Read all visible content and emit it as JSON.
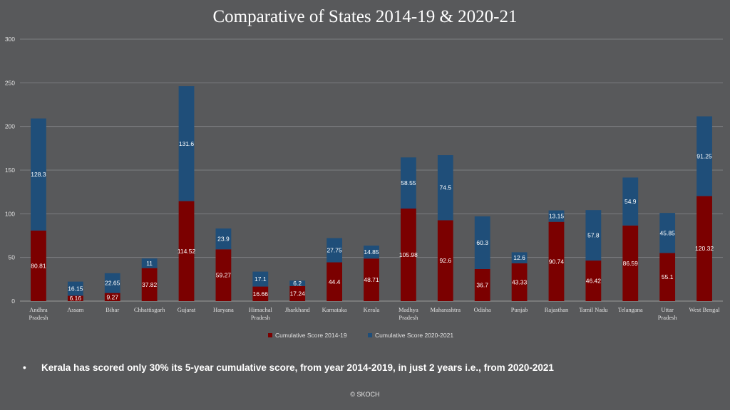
{
  "chart_data": {
    "type": "bar",
    "stacked": true,
    "title": "Comparative of States 2014-19 & 2020-21",
    "categories": [
      "Andhra Pradesh",
      "Assam",
      "Bihar",
      "Chhattisgarh",
      "Gujarat",
      "Haryana",
      "Himachal Pradesh",
      "Jharkhand",
      "Karnataka",
      "Kerala",
      "Madhya Pradesh",
      "Maharashtra",
      "Odisha",
      "Punjab",
      "Rajasthan",
      "Tamil Nadu",
      "Telangana",
      "Uttar Pradesh",
      "West Bengal"
    ],
    "category_lines": [
      [
        "Andhra",
        "Pradesh"
      ],
      [
        "Assam"
      ],
      [
        "Bihar"
      ],
      [
        "Chhattisgarh"
      ],
      [
        "Gujarat"
      ],
      [
        "Haryana"
      ],
      [
        "Himachal",
        "Pradesh"
      ],
      [
        "Jharkhand"
      ],
      [
        "Karnataka"
      ],
      [
        "Kerala"
      ],
      [
        "Madhya",
        "Pradesh"
      ],
      [
        "Maharashtra"
      ],
      [
        "Odisha"
      ],
      [
        "Punjab"
      ],
      [
        "Rajasthan"
      ],
      [
        "Tamil Nadu"
      ],
      [
        "Telangana"
      ],
      [
        "Uttar",
        "Pradesh"
      ],
      [
        "West Bengal"
      ]
    ],
    "series": [
      {
        "name": "Cumulative Score 2014-19",
        "color": "#7b0000",
        "values": [
          80.81,
          6.16,
          9.27,
          37.82,
          114.52,
          59.27,
          16.66,
          17.24,
          44.4,
          48.71,
          105.98,
          92.6,
          36.7,
          43.33,
          90.74,
          46.42,
          86.59,
          55.1,
          120.32
        ]
      },
      {
        "name": "Cumulative Score 2020-2021",
        "color": "#1f4e79",
        "values": [
          128.3,
          16.15,
          22.65,
          11,
          131.6,
          23.9,
          17.1,
          6.2,
          27.75,
          14.85,
          58.55,
          74.5,
          60.3,
          12.6,
          13.15,
          57.8,
          54.9,
          45.85,
          91.25
        ]
      }
    ],
    "ylim": [
      0,
      300
    ],
    "yticks": [
      "0",
      "50",
      "100",
      "150",
      "200",
      "250",
      "300"
    ],
    "grid": true,
    "legend": "bottom"
  },
  "note": {
    "bullet": "•",
    "text": "Kerala has scored only 30% its 5-year cumulative score, from year 2014-2019,  in just 2 years i.e., from 2020-2021"
  },
  "footer": "© SKOCH"
}
